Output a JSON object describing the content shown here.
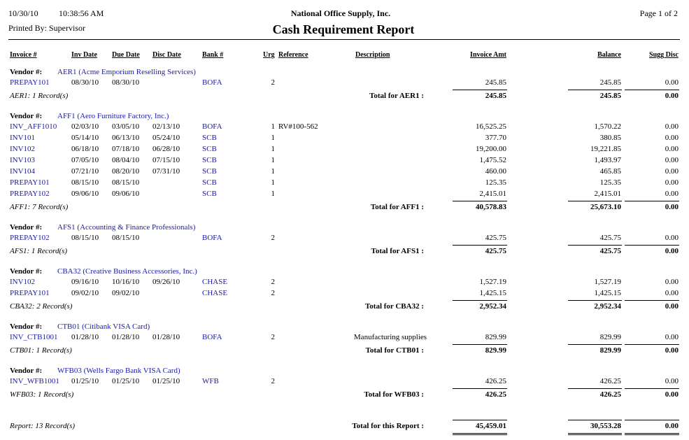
{
  "header": {
    "date": "10/30/10",
    "time": "10:38:56 AM",
    "company": "National Office Supply, Inc.",
    "page": "Page 1 of 2",
    "printed_by": "Printed By: Supervisor",
    "title": "Cash Requirement Report"
  },
  "columns": {
    "invoice": "Invoice #",
    "inv_date": "Inv Date",
    "due_date": "Due Date",
    "disc_date": "Disc Date",
    "bank": "Bank #",
    "urg": "Urg",
    "reference": "Reference",
    "description": "Description",
    "invoice_amt": "Invoice Amt",
    "balance": "Balance",
    "sugg_disc": "Sugg Disc"
  },
  "vendors": [
    {
      "label": "Vendor #:",
      "name": "AER1 (Acme Emporium Reselling Services)",
      "rows": [
        {
          "invoice": "PREPAY101",
          "inv_date": "08/30/10",
          "due_date": "08/30/10",
          "bank": "BOFA",
          "urg": "2",
          "invoice_amt": "245.85",
          "balance": "245.85",
          "sugg_disc": "0.00"
        }
      ],
      "record_count": "AER1: 1 Record(s)",
      "total_label": "Total for AER1 :",
      "totals": {
        "invoice_amt": "245.85",
        "balance": "245.85",
        "sugg_disc": "0.00"
      }
    },
    {
      "label": "Vendor #:",
      "name": "AFF1 (Aero Furniture Factory, Inc.)",
      "rows": [
        {
          "invoice": "INV_AFF1010",
          "inv_date": "02/03/10",
          "due_date": "03/05/10",
          "disc_date": "02/13/10",
          "bank": "BOFA",
          "urg": "1",
          "reference": "RV#100-562",
          "invoice_amt": "16,525.25",
          "balance": "1,570.22",
          "sugg_disc": "0.00"
        },
        {
          "invoice": "INV101",
          "inv_date": "05/14/10",
          "due_date": "06/13/10",
          "disc_date": "05/24/10",
          "bank": "SCB",
          "urg": "1",
          "invoice_amt": "377.70",
          "balance": "380.85",
          "sugg_disc": "0.00"
        },
        {
          "invoice": "INV102",
          "inv_date": "06/18/10",
          "due_date": "07/18/10",
          "disc_date": "06/28/10",
          "bank": "SCB",
          "urg": "1",
          "invoice_amt": "19,200.00",
          "balance": "19,221.85",
          "sugg_disc": "0.00"
        },
        {
          "invoice": "INV103",
          "inv_date": "07/05/10",
          "due_date": "08/04/10",
          "disc_date": "07/15/10",
          "bank": "SCB",
          "urg": "1",
          "invoice_amt": "1,475.52",
          "balance": "1,493.97",
          "sugg_disc": "0.00"
        },
        {
          "invoice": "INV104",
          "inv_date": "07/21/10",
          "due_date": "08/20/10",
          "disc_date": "07/31/10",
          "bank": "SCB",
          "urg": "1",
          "invoice_amt": "460.00",
          "balance": "465.85",
          "sugg_disc": "0.00"
        },
        {
          "invoice": "PREPAY101",
          "inv_date": "08/15/10",
          "due_date": "08/15/10",
          "bank": "SCB",
          "urg": "1",
          "invoice_amt": "125.35",
          "balance": "125.35",
          "sugg_disc": "0.00"
        },
        {
          "invoice": "PREPAY102",
          "inv_date": "09/06/10",
          "due_date": "09/06/10",
          "bank": "SCB",
          "urg": "1",
          "invoice_amt": "2,415.01",
          "balance": "2,415.01",
          "sugg_disc": "0.00"
        }
      ],
      "record_count": "AFF1: 7 Record(s)",
      "total_label": "Total for AFF1 :",
      "totals": {
        "invoice_amt": "40,578.83",
        "balance": "25,673.10",
        "sugg_disc": "0.00"
      }
    },
    {
      "label": "Vendor #:",
      "name": "AFS1 (Accounting & Finance Professionals)",
      "rows": [
        {
          "invoice": "PREPAY102",
          "inv_date": "08/15/10",
          "due_date": "08/15/10",
          "bank": "BOFA",
          "urg": "2",
          "invoice_amt": "425.75",
          "balance": "425.75",
          "sugg_disc": "0.00"
        }
      ],
      "record_count": "AFS1: 1 Record(s)",
      "total_label": "Total for AFS1 :",
      "totals": {
        "invoice_amt": "425.75",
        "balance": "425.75",
        "sugg_disc": "0.00"
      }
    },
    {
      "label": "Vendor #:",
      "name": "CBA32 (Creative Business Accessories, Inc.)",
      "rows": [
        {
          "invoice": "INV102",
          "inv_date": "09/16/10",
          "due_date": "10/16/10",
          "disc_date": "09/26/10",
          "bank": "CHASE",
          "urg": "2",
          "invoice_amt": "1,527.19",
          "balance": "1,527.19",
          "sugg_disc": "0.00"
        },
        {
          "invoice": "PREPAY101",
          "inv_date": "09/02/10",
          "due_date": "09/02/10",
          "bank": "CHASE",
          "urg": "2",
          "invoice_amt": "1,425.15",
          "balance": "1,425.15",
          "sugg_disc": "0.00"
        }
      ],
      "record_count": "CBA32: 2 Record(s)",
      "total_label": "Total for CBA32 :",
      "totals": {
        "invoice_amt": "2,952.34",
        "balance": "2,952.34",
        "sugg_disc": "0.00"
      }
    },
    {
      "label": "Vendor #:",
      "name": "CTB01 (Citibank VISA Card)",
      "rows": [
        {
          "invoice": "INV_CTB1001",
          "inv_date": "01/28/10",
          "due_date": "01/28/10",
          "disc_date": "01/28/10",
          "bank": "BOFA",
          "urg": "2",
          "description": "Manufacturing supplies",
          "invoice_amt": "829.99",
          "balance": "829.99",
          "sugg_disc": "0.00"
        }
      ],
      "record_count": "CTB01: 1 Record(s)",
      "total_label": "Total for CTB01 :",
      "totals": {
        "invoice_amt": "829.99",
        "balance": "829.99",
        "sugg_disc": "0.00"
      }
    },
    {
      "label": "Vendor #:",
      "name": "WFB03 (Wells Fargo Bank VISA Card)",
      "rows": [
        {
          "invoice": "INV_WFB1001",
          "inv_date": "01/25/10",
          "due_date": "01/25/10",
          "disc_date": "01/25/10",
          "bank": "WFB",
          "urg": "2",
          "invoice_amt": "426.25",
          "balance": "426.25",
          "sugg_disc": "0.00"
        }
      ],
      "record_count": "WFB03: 1 Record(s)",
      "total_label": "Total for WFB03 :",
      "totals": {
        "invoice_amt": "426.25",
        "balance": "426.25",
        "sugg_disc": "0.00"
      }
    }
  ],
  "report_footer": {
    "record_count": "Report: 13 Record(s)",
    "total_label": "Total for this Report :",
    "totals": {
      "invoice_amt": "45,459.01",
      "balance": "30,553.28",
      "sugg_disc": "0.00"
    }
  }
}
